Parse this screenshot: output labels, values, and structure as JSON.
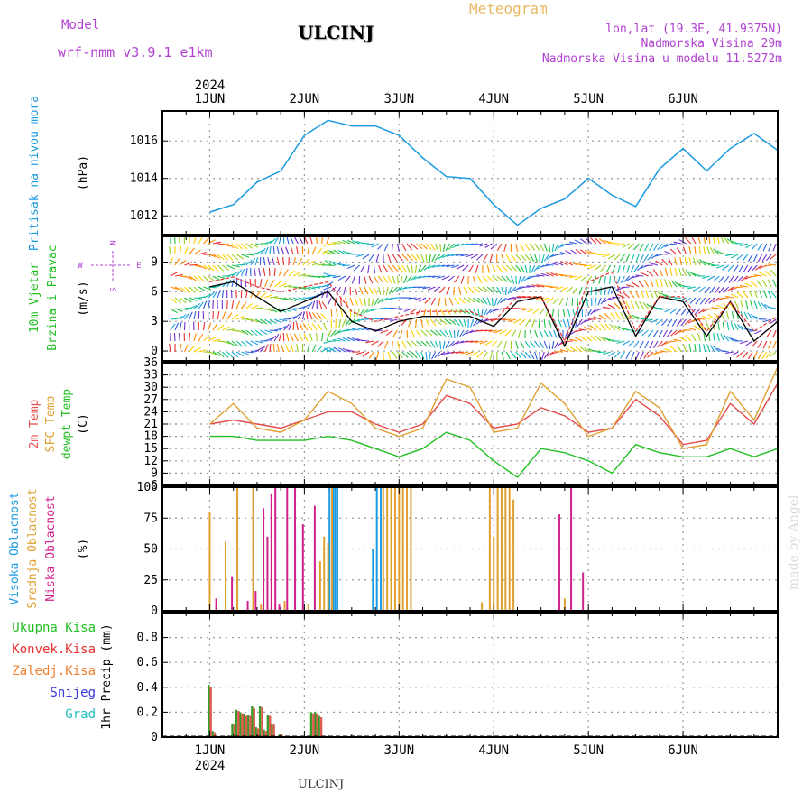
{
  "header": {
    "model_label": "Model",
    "model_name": "wrf-nmm_v3.9.1 e1km",
    "station": "ULCINJ",
    "product": "Meteogram",
    "location": "lon,lat (19.3E, 41.9375N)",
    "elevation": "Nadmorska Visina 29m",
    "model_elevation": "Nadmorska Visina u modelu 11.5272m",
    "footer_station": "ULCINJ",
    "credit": "made by Angel"
  },
  "colors": {
    "pressure": "#1a9ae0",
    "temp2m": "#e64b4b",
    "sfctemp": "#e0a030",
    "dewpt": "#22c022",
    "windspeed": "#000000",
    "gust": "#e63232",
    "high_cloud": "#1a9ae0",
    "mid_cloud": "#e0a030",
    "low_cloud": "#d0208a",
    "total_precip": "#3a9a2a",
    "conv_precip": "#e05a50",
    "header_purple": "#b040d0",
    "header_gold": "#e8b860"
  },
  "chart_data": [
    {
      "type": "line",
      "panel": "pressure",
      "ylabel": "Pritisak na nivou mora",
      "unit": "(hPa)",
      "x_axis_top": {
        "ticks": [
          "1JUN",
          "2JUN",
          "3JUN",
          "4JUN",
          "5JUN",
          "6JUN"
        ],
        "year": "2024"
      },
      "yticks": [
        1012,
        1014,
        1016
      ],
      "ylim": [
        1011,
        1017.6
      ],
      "x_hours": [
        0,
        6,
        12,
        18,
        24,
        30,
        36,
        42,
        48,
        54,
        60,
        66,
        72,
        78,
        84,
        90,
        96,
        102,
        108,
        114,
        120,
        126,
        132,
        138,
        144
      ],
      "series": [
        {
          "values": [
            1012.2,
            1012.6,
            1013.8,
            1014.4,
            1016.3,
            1017.1,
            1016.8,
            1016.8,
            1016.3,
            1015.1,
            1014.1,
            1014.0,
            1012.6,
            1011.5,
            1012.4,
            1012.9,
            1014.0,
            1013.1,
            1012.5,
            1014.5,
            1015.6,
            1014.4,
            1015.6,
            1016.4,
            1015.5
          ]
        }
      ]
    },
    {
      "type": "line",
      "panel": "wind",
      "ylabel": "10m Vjetar Brzina i Pravac",
      "unit": "(m/s)",
      "compass": {
        "north": "N",
        "west": "W",
        "east": "E",
        "south": "S"
      },
      "yticks": [
        0,
        3,
        6,
        9
      ],
      "ylim": [
        -1,
        11.6
      ],
      "x_hours": [
        0,
        6,
        12,
        18,
        24,
        30,
        36,
        42,
        48,
        54,
        60,
        66,
        72,
        78,
        84,
        90,
        96,
        102,
        108,
        114,
        120,
        126,
        132,
        138,
        144
      ],
      "series": [
        {
          "values": [
            6.5,
            7.0,
            5.5,
            4.0,
            5.0,
            6.0,
            3.0,
            2.0,
            3.0,
            3.5,
            3.5,
            3.5,
            2.5,
            5.0,
            5.5,
            0.5,
            6.0,
            6.5,
            1.5,
            5.5,
            5.0,
            1.5,
            5.0,
            1.0,
            3.0
          ]
        },
        {
          "values": [
            7.0,
            7.5,
            6.5,
            6.0,
            6.5,
            7.0,
            4.0,
            3.0,
            3.5,
            4.0,
            4.0,
            4.0,
            3.0,
            5.5,
            5.5,
            1.0,
            7.0,
            8.0,
            2.0,
            5.5,
            5.5,
            2.0,
            5.0,
            2.0,
            3.5
          ]
        }
      ]
    },
    {
      "type": "line",
      "panel": "temperature",
      "ylabel": "2m Temp SFC Temp dewpt Temp",
      "series_labels": [
        "2m Temp",
        "SFC Temp",
        "dewpt Temp"
      ],
      "unit": "(C)",
      "yticks": [
        6,
        9,
        12,
        15,
        18,
        21,
        24,
        27,
        30,
        33,
        36
      ],
      "ylim": [
        6,
        36
      ],
      "x_hours": [
        0,
        6,
        12,
        18,
        24,
        30,
        36,
        42,
        48,
        54,
        60,
        66,
        72,
        78,
        84,
        90,
        96,
        102,
        108,
        114,
        120,
        126,
        132,
        138,
        144
      ],
      "series": [
        {
          "values": [
            21,
            22,
            21,
            20,
            22,
            24,
            24,
            21,
            19,
            21,
            28,
            26,
            20,
            21,
            25,
            23,
            19,
            20,
            27,
            23,
            16,
            17,
            26,
            21,
            31
          ]
        },
        {
          "values": [
            21,
            26,
            20,
            19,
            22,
            29,
            26,
            20,
            18,
            20,
            32,
            30,
            19,
            20,
            31,
            26,
            18,
            20,
            29,
            25,
            15,
            16,
            29,
            22,
            35
          ]
        },
        {
          "values": [
            18,
            18,
            17,
            17,
            17,
            18,
            17,
            15,
            13,
            15,
            19,
            17,
            12,
            8,
            15,
            14,
            12,
            9,
            16,
            14,
            13,
            13,
            15,
            13,
            15
          ]
        }
      ]
    },
    {
      "type": "bar",
      "panel": "cloud",
      "ylabel": "Visoka Oblacnost Srednja Oblacnost Niska Oblacnost",
      "series_labels": [
        "Visoka Oblacnost",
        "Srednja Oblacnost",
        "Niska Oblacnost"
      ],
      "unit": "(%)",
      "yticks": [
        0,
        25,
        50,
        75,
        100
      ],
      "ylim": [
        0,
        100
      ],
      "series": [
        {
          "x_hours": [
            30,
            31,
            31.5,
            32,
            41,
            42,
            43
          ],
          "values": [
            100,
            100,
            100,
            100,
            50,
            100,
            100
          ]
        },
        {
          "x_hours": [
            0,
            4,
            7,
            11,
            13,
            19,
            25,
            28,
            29,
            30,
            31,
            44,
            45,
            46,
            47,
            48,
            49,
            50,
            51,
            69,
            71,
            72,
            73,
            74,
            75,
            76,
            77,
            90
          ],
          "values": [
            80,
            56,
            100,
            100,
            5,
            8,
            5,
            40,
            60,
            55,
            100,
            100,
            100,
            100,
            100,
            100,
            100,
            100,
            100,
            7,
            100,
            60,
            100,
            100,
            100,
            100,
            90,
            10
          ]
        },
        {
          "x_hours": [
            2,
            6,
            10,
            12,
            14,
            15,
            16,
            17,
            18,
            20,
            22,
            24,
            27,
            89,
            92,
            95
          ],
          "values": [
            10,
            28,
            8,
            16,
            83,
            60,
            95,
            100,
            5,
            100,
            100,
            70,
            85,
            78,
            100,
            31
          ]
        }
      ]
    },
    {
      "type": "bar",
      "panel": "precip",
      "ylabel": "1hr Precip (mm)",
      "legend": [
        "Ukupna Kisa",
        "Konvek.Kisa",
        "Zaledj.Kisa",
        "Snijeg",
        "Grad"
      ],
      "x_axis_bottom": {
        "ticks": [
          "1JUN",
          "2JUN",
          "3JUN",
          "4JUN",
          "5JUN",
          "6JUN"
        ],
        "year": "2024"
      },
      "yticks": [
        0,
        0.2,
        0.4,
        0.6,
        0.8
      ],
      "ylim": [
        0,
        1.0
      ],
      "series": [
        {
          "x_hours": [
            0,
            1,
            6,
            7,
            8,
            9,
            10,
            11,
            12,
            13,
            14,
            15,
            16,
            18,
            26,
            27,
            28
          ],
          "values": [
            0.42,
            0.05,
            0.11,
            0.22,
            0.2,
            0.19,
            0.18,
            0.25,
            0.08,
            0.25,
            0.06,
            0.18,
            0.11,
            0.02,
            0.2,
            0.2,
            0.17
          ]
        },
        {
          "x_hours": [
            0,
            1,
            6,
            7,
            8,
            9,
            10,
            11,
            12,
            13,
            14,
            15,
            16,
            18,
            26,
            27,
            28
          ],
          "values": [
            0.4,
            0.04,
            0.1,
            0.21,
            0.19,
            0.17,
            0.17,
            0.23,
            0.07,
            0.24,
            0.05,
            0.17,
            0.1,
            0.02,
            0.19,
            0.19,
            0.16
          ]
        }
      ]
    }
  ]
}
